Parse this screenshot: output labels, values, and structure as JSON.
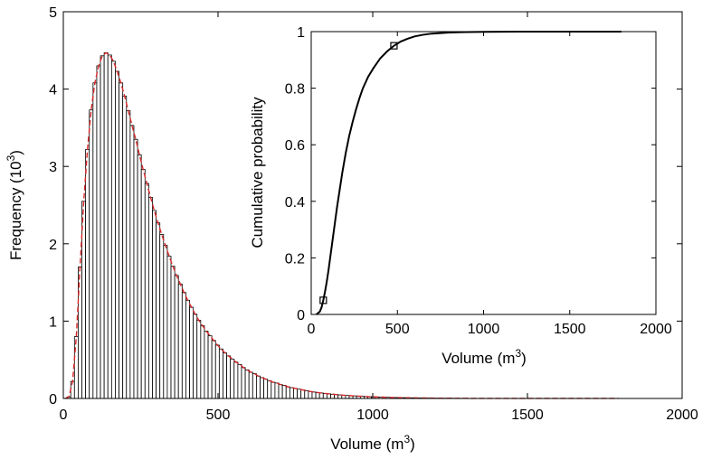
{
  "chart_data": [
    {
      "type": "bar",
      "role": "main-histogram",
      "xlabel": "Volume (m",
      "xlabel_sup": "3",
      "xlabel_end": ")",
      "ylabel": "Frequency (10",
      "ylabel_sup": "3",
      "ylabel_end": ")",
      "xlim": [
        0,
        2000
      ],
      "ylim": [
        0,
        5
      ],
      "xticks": [
        "0",
        "500",
        "1000",
        "1500",
        "2000"
      ],
      "yticks": [
        "0",
        "1",
        "2",
        "3",
        "4",
        "5"
      ],
      "bin_width": 12,
      "bin_start": 0,
      "values": [
        0,
        0.02,
        0.22,
        0.8,
        1.7,
        2.55,
        3.22,
        3.73,
        4.08,
        4.3,
        4.43,
        4.47,
        4.44,
        4.36,
        4.23,
        4.08,
        3.91,
        3.72,
        3.53,
        3.35,
        3.15,
        2.96,
        2.78,
        2.6,
        2.43,
        2.27,
        2.12,
        1.98,
        1.84,
        1.71,
        1.59,
        1.48,
        1.37,
        1.27,
        1.18,
        1.09,
        1.01,
        0.94,
        0.87,
        0.81,
        0.75,
        0.69,
        0.64,
        0.59,
        0.55,
        0.51,
        0.47,
        0.44,
        0.4,
        0.37,
        0.34,
        0.32,
        0.29,
        0.27,
        0.25,
        0.23,
        0.21,
        0.2,
        0.18,
        0.17,
        0.15,
        0.14,
        0.13,
        0.12,
        0.11,
        0.1,
        0.09,
        0.083,
        0.077,
        0.071,
        0.065,
        0.06,
        0.055,
        0.05,
        0.046,
        0.042,
        0.039,
        0.036,
        0.033,
        0.03,
        0.028,
        0.025,
        0.023,
        0.021,
        0.019,
        0.018,
        0.016,
        0.015,
        0.013,
        0.012,
        0.011,
        0.01,
        0.009,
        0.008,
        0.008,
        0.007,
        0.006,
        0.006,
        0.005,
        0.005,
        0.004,
        0.004,
        0.003,
        0.003,
        0.003,
        0.002,
        0.002,
        0.002,
        0.002,
        0.001,
        0.001,
        0.001,
        0.001,
        0.001,
        0.001,
        0.001,
        0.001,
        0.001,
        0.001,
        0.001,
        0.001,
        0.001,
        0.001,
        0.001,
        0.001,
        0.001,
        0.001,
        0.001,
        0.001,
        0.001,
        0.001,
        0.001,
        0.001,
        0.001,
        0.001,
        0.001,
        0.001,
        0.001,
        0.001,
        0.001,
        0.001,
        0.001,
        0.001,
        0.001,
        0.001,
        0.001,
        0.001,
        0.001,
        0.001,
        0.001
      ],
      "bar_color": "#ffffff",
      "edge_color": "#000000",
      "fit_color": "#d62728",
      "fit_style": "dashed"
    },
    {
      "type": "line",
      "role": "inset-cdf",
      "xlabel": "Volume (m",
      "xlabel_sup": "3",
      "xlabel_end": ")",
      "ylabel": "Cumulative probability",
      "xlim": [
        0,
        2000
      ],
      "ylim": [
        0,
        1
      ],
      "xticks": [
        "0",
        "500",
        "1000",
        "1500",
        "2000"
      ],
      "yticks": [
        "0",
        "0.2",
        "0.4",
        "0.6",
        "0.8",
        "1"
      ],
      "x": [
        30,
        50,
        60,
        70,
        80,
        90,
        100,
        110,
        120,
        130,
        140,
        150,
        160,
        180,
        200,
        220,
        240,
        260,
        280,
        300,
        330,
        360,
        400,
        440,
        480,
        520,
        560,
        600,
        650,
        700,
        800,
        900,
        1000,
        1100,
        1200,
        1400,
        1600,
        1800
      ],
      "y": [
        0.0,
        0.01,
        0.025,
        0.05,
        0.08,
        0.115,
        0.155,
        0.2,
        0.245,
        0.29,
        0.335,
        0.38,
        0.42,
        0.5,
        0.57,
        0.63,
        0.68,
        0.725,
        0.765,
        0.8,
        0.84,
        0.87,
        0.905,
        0.93,
        0.95,
        0.965,
        0.975,
        0.983,
        0.989,
        0.993,
        0.997,
        0.9985,
        0.9993,
        0.9997,
        0.9999,
        1.0,
        1.0,
        1.0
      ],
      "markers": [
        {
          "x": 70,
          "y": 0.05
        },
        {
          "x": 480,
          "y": 0.95
        }
      ],
      "line_color": "#000000"
    }
  ]
}
